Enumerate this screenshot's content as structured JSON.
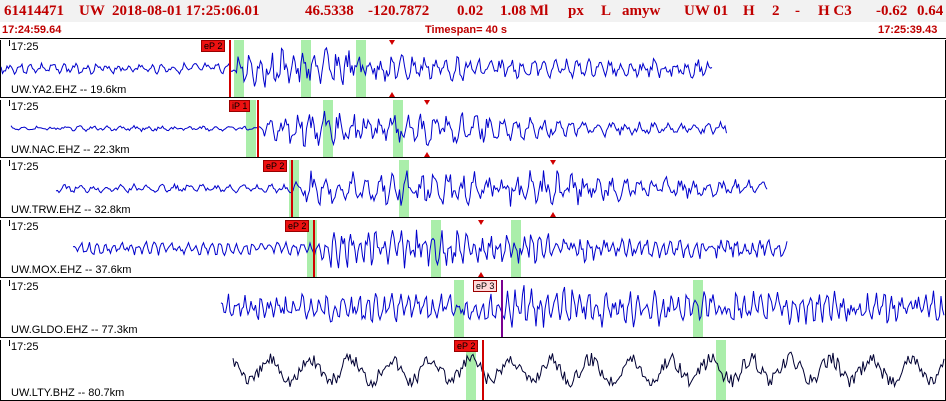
{
  "header": {
    "event_id": "61414471",
    "network": "UW",
    "datetime": "2018-08-01 17:25:06.01",
    "lat": "46.5338",
    "lon": "-120.7872",
    "depth": "0.02",
    "magnitude": "1.08 Ml",
    "type": "px",
    "status": "L",
    "author": "amyw",
    "version_info": "UW 01",
    "quality": "H",
    "nph": "2",
    "dash": "-",
    "hc": "H C3",
    "val1": "-0.62",
    "val2": "0.64"
  },
  "timebar": {
    "start": "17:24:59.64",
    "span": "Timespan=  40 s",
    "end": "17:25:39.43"
  },
  "panels": [
    {
      "time": "17:25",
      "label": "UW.YA2.EHZ -- 19.6km",
      "pick": "eP 2",
      "pick_style": "dark",
      "trace_color": "#0000cc"
    },
    {
      "time": "17:25",
      "label": "UW.NAC.EHZ -- 22.3km",
      "pick": "iP 1",
      "pick_style": "dark",
      "trace_color": "#0000cc"
    },
    {
      "time": "17:25",
      "label": "UW.TRW.EHZ -- 32.8km",
      "pick": "eP 2",
      "pick_style": "dark",
      "trace_color": "#0000cc"
    },
    {
      "time": "17:25",
      "label": "UW.MOX.EHZ -- 37.6km",
      "pick": "eP 2",
      "pick_style": "dark",
      "trace_color": "#0000cc"
    },
    {
      "time": "17:25",
      "label": "UW.GLDO.EHZ -- 77.3km",
      "pick": "eP 3",
      "pick_style": "light",
      "trace_color": "#0000cc"
    },
    {
      "time": "17:25",
      "label": "UW.LTY.BHZ -- 80.7km",
      "pick": "eP 2",
      "pick_style": "dark",
      "trace_color": "#000033"
    }
  ],
  "colors": {
    "pick_red": "#d00000",
    "window_green": "#aaeeaa",
    "title_red": "#c00000"
  }
}
